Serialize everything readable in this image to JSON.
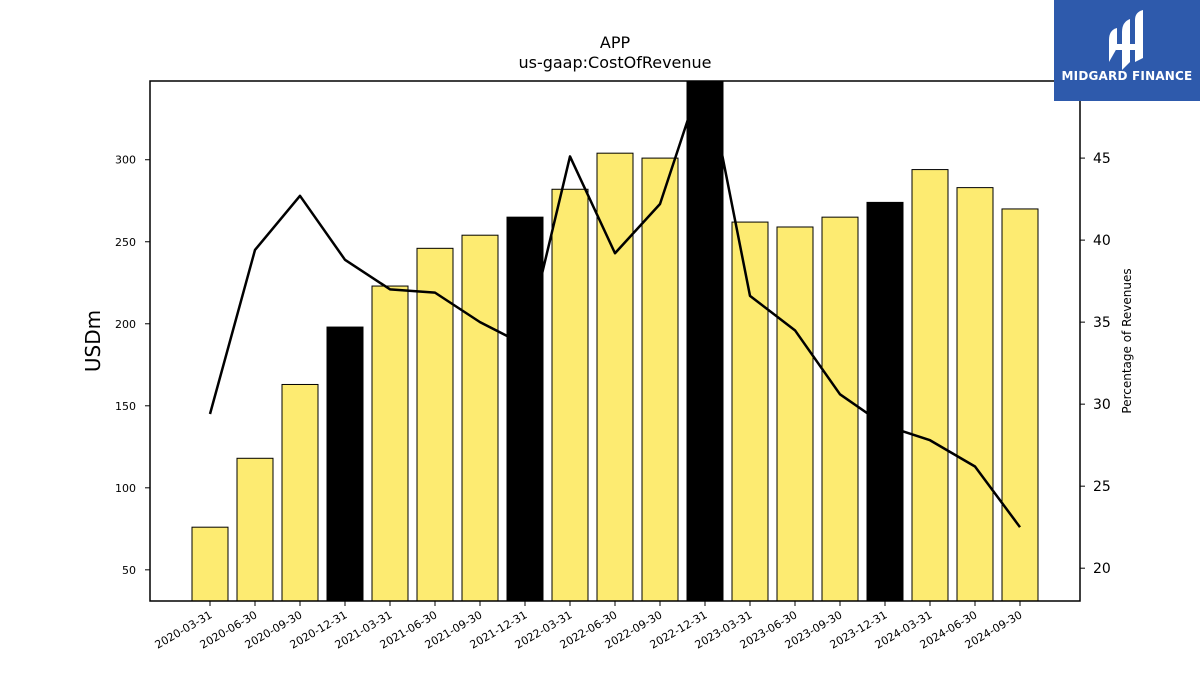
{
  "chart_data": {
    "type": "bar",
    "title": "APP",
    "subtitle": "us-gaap:CostOfRevenue",
    "ylabel": "USDm",
    "y2label": "Percentage of Revenues",
    "ylim": [
      31,
      348
    ],
    "y2lim": [
      18,
      49.7
    ],
    "yticks": [
      50,
      100,
      150,
      200,
      250,
      300
    ],
    "y2ticks": [
      20,
      25,
      30,
      35,
      40,
      45
    ],
    "categories": [
      "2020-03-31",
      "2020-06-30",
      "2020-09-30",
      "2020-12-31",
      "2021-03-31",
      "2021-06-30",
      "2021-09-30",
      "2021-12-31",
      "2022-03-31",
      "2022-06-30",
      "2022-09-30",
      "2022-12-31",
      "2023-03-31",
      "2023-06-30",
      "2023-09-30",
      "2023-12-31",
      "2024-03-31",
      "2024-06-30",
      "2024-09-30"
    ],
    "series": [
      {
        "type": "bar",
        "values": [
          76,
          118,
          163,
          198,
          223,
          246,
          254,
          265,
          282,
          304,
          301,
          350,
          262,
          259,
          265,
          274,
          294,
          283,
          270
        ],
        "colors": [
          "#fdeb71",
          "#fdeb71",
          "#fdeb71",
          "#000000",
          "#fdeb71",
          "#fdeb71",
          "#fdeb71",
          "#000000",
          "#fdeb71",
          "#fdeb71",
          "#fdeb71",
          "#000000",
          "#fdeb71",
          "#fdeb71",
          "#fdeb71",
          "#000000",
          "#fdeb71",
          "#fdeb71",
          "#fdeb71"
        ]
      },
      {
        "type": "line",
        "axis": "right",
        "color": "#000000",
        "values": [
          29.4,
          39.4,
          42.7,
          38.8,
          37.0,
          36.8,
          35.0,
          33.6,
          45.1,
          39.2,
          42.2,
          50.5,
          36.6,
          34.5,
          30.6,
          28.7,
          27.8,
          26.2,
          22.5
        ]
      }
    ]
  },
  "logo": {
    "text": "MIDGARD FINANCE"
  }
}
